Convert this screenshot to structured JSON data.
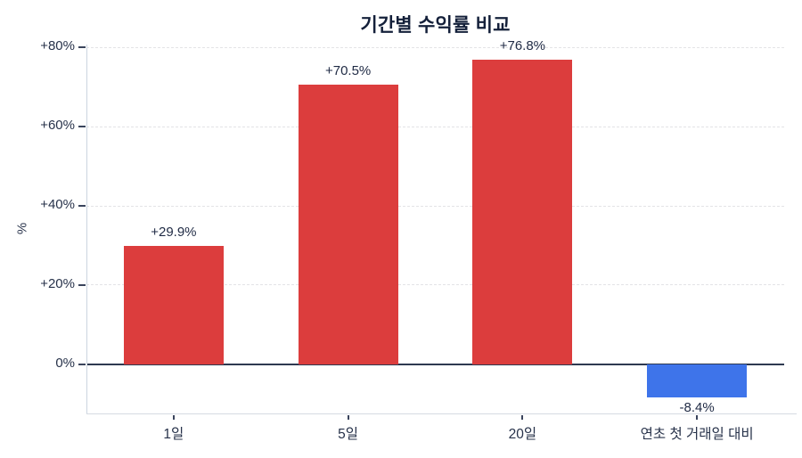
{
  "chart": {
    "title": "기간별 수익률 비교",
    "y_axis_title": "%"
  },
  "chart_data": {
    "type": "bar",
    "title": "기간별 수익률 비교",
    "xlabel": "",
    "ylabel": "%",
    "categories": [
      "1일",
      "5일",
      "20일",
      "연초 첫 거래일 대비"
    ],
    "values": [
      29.9,
      70.5,
      76.8,
      -8.4
    ],
    "value_labels": [
      "+29.9%",
      "+70.5%",
      "+76.8%",
      "-8.4%"
    ],
    "yticks": [
      {
        "label": "+80%",
        "value": 80
      },
      {
        "label": "+60%",
        "value": 60
      },
      {
        "label": "+40%",
        "value": 40
      },
      {
        "label": "+20%",
        "value": 20
      },
      {
        "label": "0%",
        "value": 0
      }
    ],
    "ylim": [
      -12.6,
      80.7
    ],
    "grid": "horizontal-dashed",
    "legend": "none",
    "colors": {
      "positive": "#dc3d3d",
      "negative": "#3e74ea",
      "zero_line": "#2e3950",
      "text": "#1f2a44",
      "gridline": "#e3e3e6"
    }
  }
}
